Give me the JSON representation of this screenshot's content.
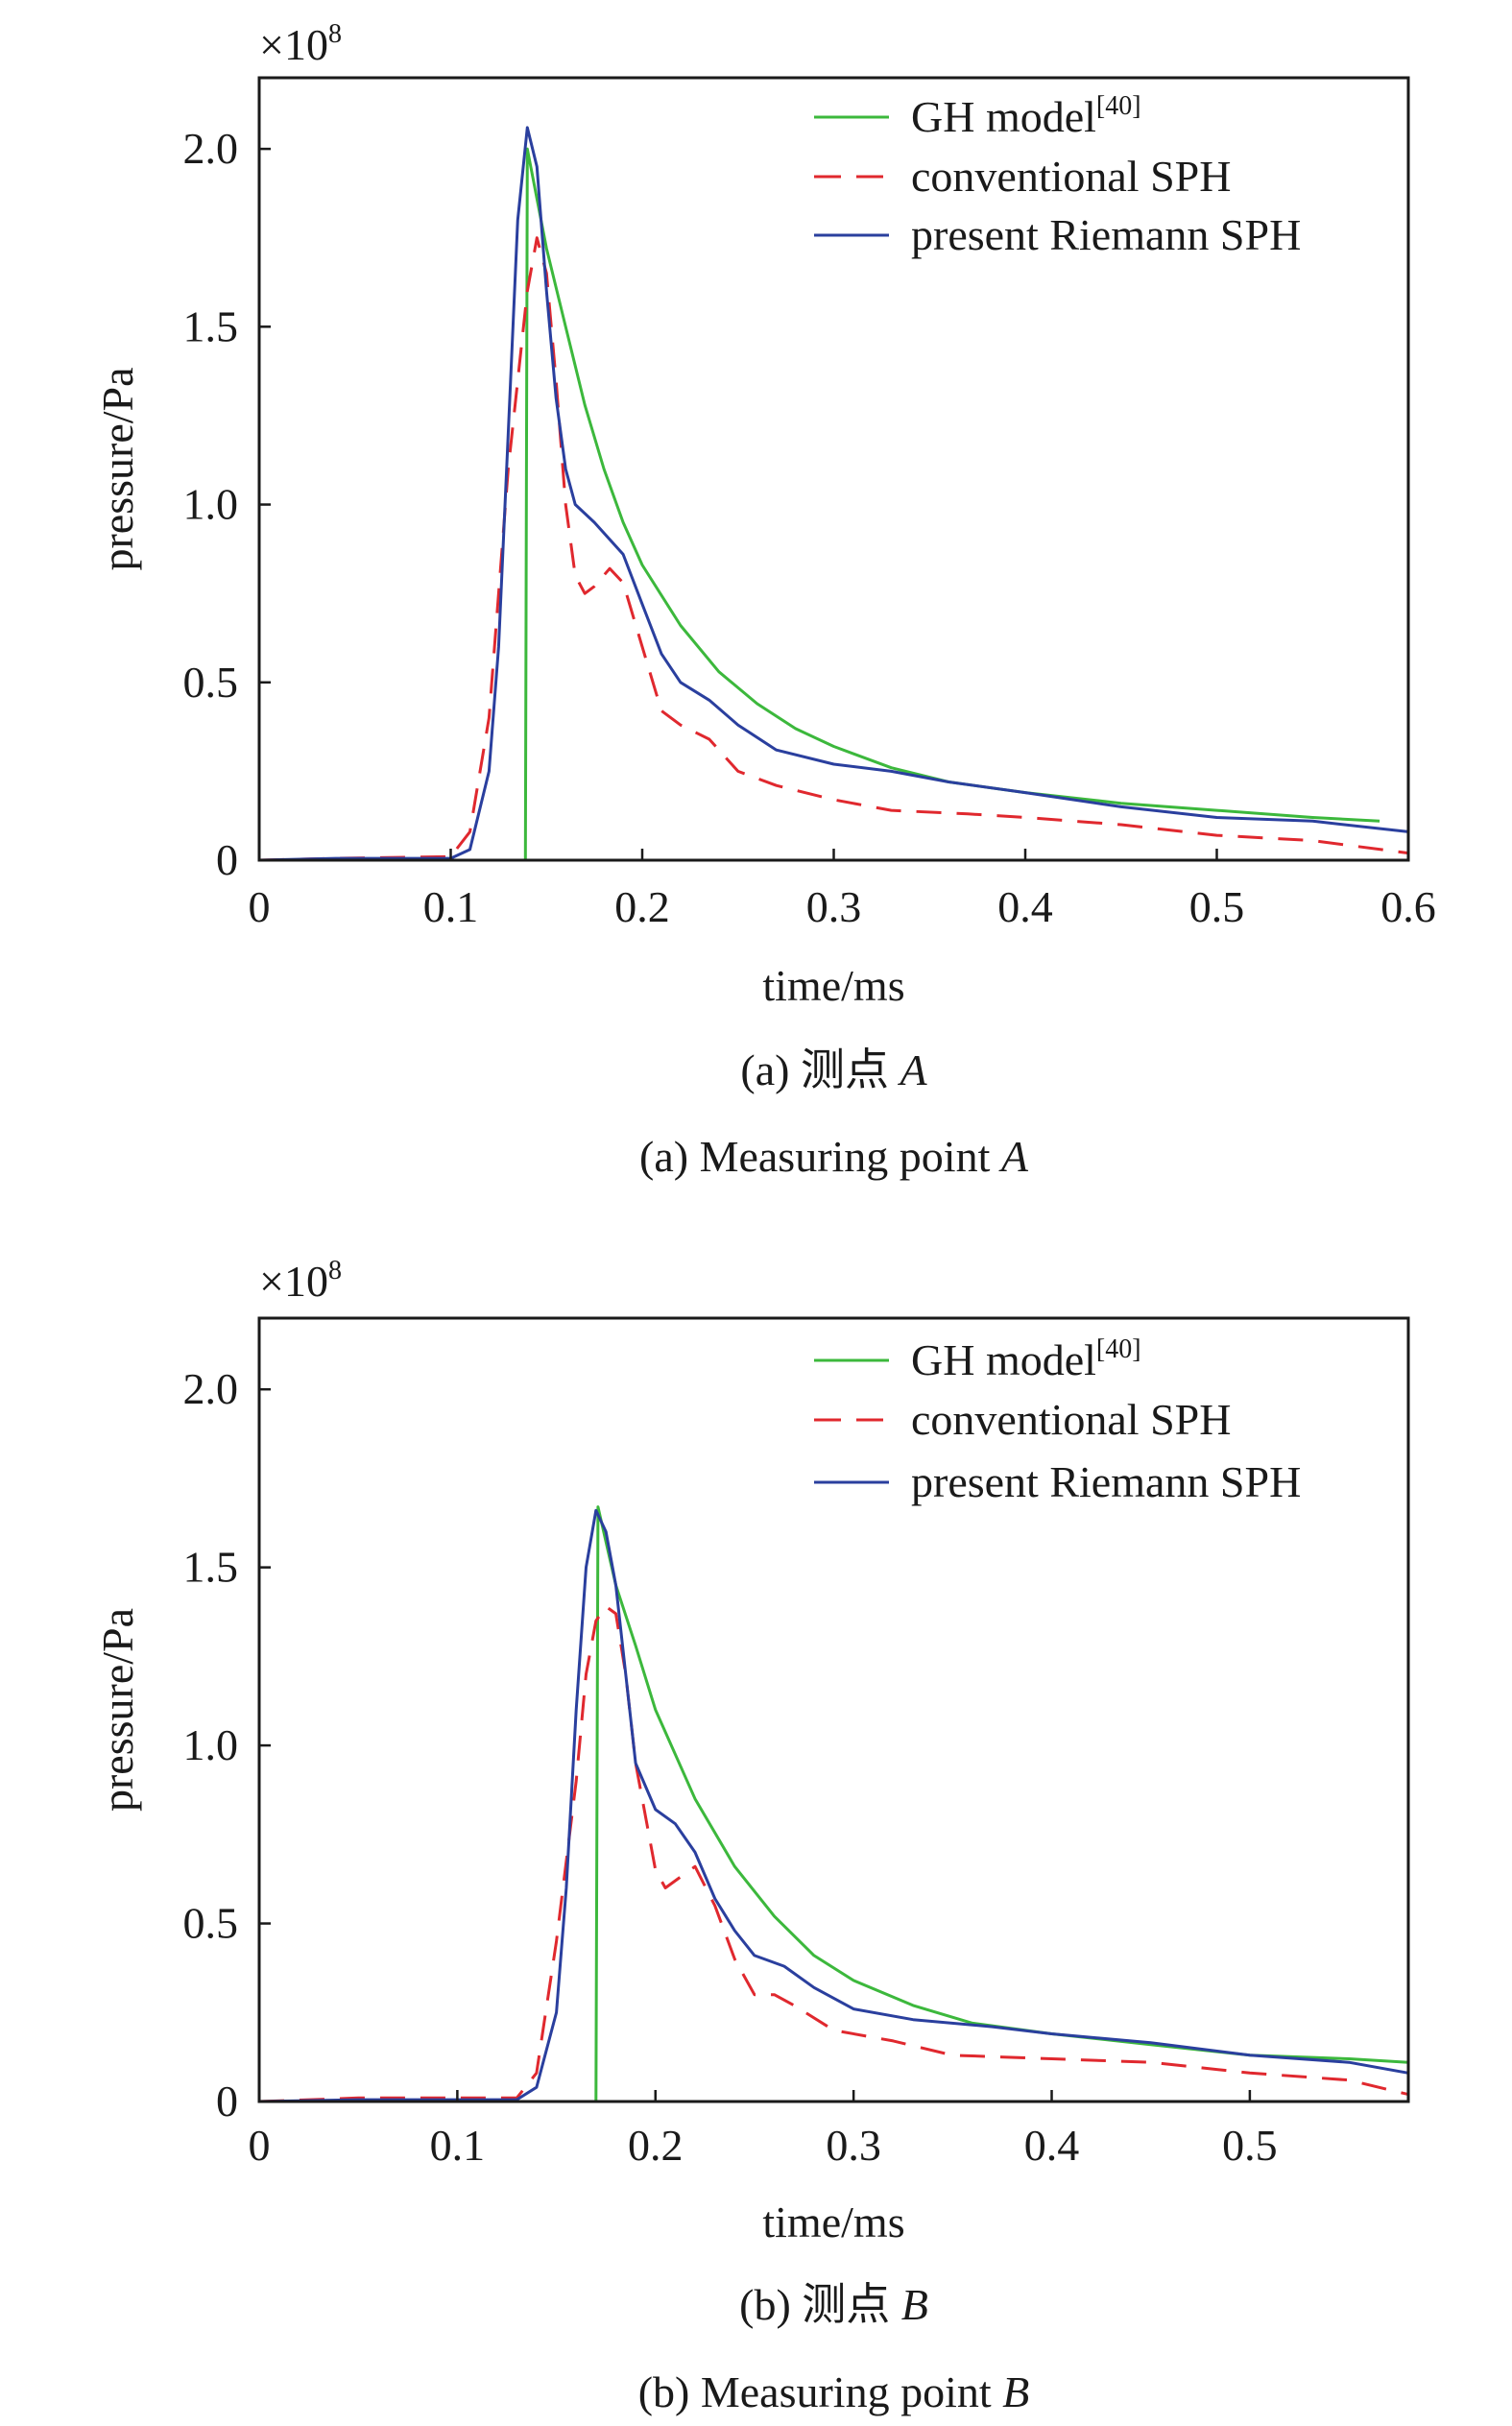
{
  "colors": {
    "gh": "#3cb83c",
    "conv": "#e0282e",
    "riemann": "#2a3f9e",
    "axis": "#1a1a1a"
  },
  "chart_data": [
    {
      "type": "line",
      "multiplier": {
        "base": "×10",
        "exp": "8"
      },
      "xlabel": "time/ms",
      "ylabel": "pressure/Pa",
      "xlim": [
        0,
        0.6
      ],
      "ylim": [
        0,
        2.2
      ],
      "xticks": [
        "0",
        "0.1",
        "0.2",
        "0.3",
        "0.4",
        "0.5",
        "0.6"
      ],
      "xtick_values": [
        0,
        0.1,
        0.2,
        0.3,
        0.4,
        0.5,
        0.6
      ],
      "yticks": [
        "0",
        "0.5",
        "1.0",
        "1.5",
        "2.0"
      ],
      "ytick_values": [
        0,
        0.5,
        1.0,
        1.5,
        2.0
      ],
      "grid": false,
      "legend_position": "top-right",
      "caption_cn": {
        "prefix": "(a) 测点 ",
        "point": "A"
      },
      "caption_en": {
        "prefix": "(a) Measuring point ",
        "point": "A"
      },
      "series": [
        {
          "name": "GH model",
          "ref": "[40]",
          "style": "solid",
          "color_key": "gh",
          "points": [
            [
              0,
              0
            ],
            [
              0.139,
              0
            ],
            [
              0.14,
              2.0
            ],
            [
              0.15,
              1.72
            ],
            [
              0.16,
              1.5
            ],
            [
              0.17,
              1.28
            ],
            [
              0.18,
              1.1
            ],
            [
              0.19,
              0.95
            ],
            [
              0.2,
              0.83
            ],
            [
              0.22,
              0.66
            ],
            [
              0.24,
              0.53
            ],
            [
              0.26,
              0.44
            ],
            [
              0.28,
              0.37
            ],
            [
              0.3,
              0.32
            ],
            [
              0.33,
              0.26
            ],
            [
              0.36,
              0.22
            ],
            [
              0.4,
              0.19
            ],
            [
              0.45,
              0.16
            ],
            [
              0.5,
              0.14
            ],
            [
              0.55,
              0.12
            ],
            [
              0.585,
              0.11
            ]
          ]
        },
        {
          "name": "conventional SPH",
          "ref": "",
          "style": "dashed",
          "color_key": "conv",
          "points": [
            [
              0,
              0
            ],
            [
              0.04,
              0.005
            ],
            [
              0.1,
              0.01
            ],
            [
              0.11,
              0.08
            ],
            [
              0.12,
              0.4
            ],
            [
              0.13,
              1.1
            ],
            [
              0.14,
              1.6
            ],
            [
              0.145,
              1.75
            ],
            [
              0.15,
              1.65
            ],
            [
              0.155,
              1.35
            ],
            [
              0.16,
              1.0
            ],
            [
              0.165,
              0.8
            ],
            [
              0.17,
              0.75
            ],
            [
              0.175,
              0.77
            ],
            [
              0.183,
              0.82
            ],
            [
              0.19,
              0.78
            ],
            [
              0.2,
              0.6
            ],
            [
              0.21,
              0.42
            ],
            [
              0.22,
              0.38
            ],
            [
              0.235,
              0.34
            ],
            [
              0.25,
              0.25
            ],
            [
              0.27,
              0.21
            ],
            [
              0.3,
              0.17
            ],
            [
              0.33,
              0.14
            ],
            [
              0.37,
              0.13
            ],
            [
              0.4,
              0.12
            ],
            [
              0.45,
              0.1
            ],
            [
              0.5,
              0.07
            ],
            [
              0.55,
              0.055
            ],
            [
              0.6,
              0.02
            ]
          ]
        },
        {
          "name": "present Riemann SPH",
          "ref": "",
          "style": "solid",
          "color_key": "riemann",
          "points": [
            [
              0,
              0
            ],
            [
              0.04,
              0.005
            ],
            [
              0.1,
              0.005
            ],
            [
              0.11,
              0.03
            ],
            [
              0.12,
              0.25
            ],
            [
              0.125,
              0.6
            ],
            [
              0.13,
              1.2
            ],
            [
              0.135,
              1.8
            ],
            [
              0.14,
              2.06
            ],
            [
              0.145,
              1.95
            ],
            [
              0.15,
              1.6
            ],
            [
              0.155,
              1.3
            ],
            [
              0.16,
              1.1
            ],
            [
              0.165,
              1.0
            ],
            [
              0.175,
              0.95
            ],
            [
              0.19,
              0.86
            ],
            [
              0.2,
              0.72
            ],
            [
              0.21,
              0.58
            ],
            [
              0.22,
              0.5
            ],
            [
              0.235,
              0.45
            ],
            [
              0.25,
              0.38
            ],
            [
              0.27,
              0.31
            ],
            [
              0.3,
              0.27
            ],
            [
              0.33,
              0.25
            ],
            [
              0.36,
              0.22
            ],
            [
              0.4,
              0.19
            ],
            [
              0.45,
              0.15
            ],
            [
              0.5,
              0.12
            ],
            [
              0.55,
              0.11
            ],
            [
              0.6,
              0.08
            ]
          ]
        }
      ]
    },
    {
      "type": "line",
      "multiplier": {
        "base": "×10",
        "exp": "8"
      },
      "xlabel": "time/ms",
      "ylabel": "pressure/Pa",
      "xlim": [
        0,
        0.58
      ],
      "ylim": [
        0,
        2.2
      ],
      "xticks": [
        "0",
        "0.1",
        "0.2",
        "0.3",
        "0.4",
        "0.5"
      ],
      "xtick_values": [
        0,
        0.1,
        0.2,
        0.3,
        0.4,
        0.5
      ],
      "yticks": [
        "0",
        "0.5",
        "1.0",
        "1.5",
        "2.0"
      ],
      "ytick_values": [
        0,
        0.5,
        1.0,
        1.5,
        2.0
      ],
      "grid": false,
      "legend_position": "top-right",
      "caption_cn": {
        "prefix": "(b) 测点 ",
        "point": "B"
      },
      "caption_en": {
        "prefix": "(b) Measuring point ",
        "point": "B"
      },
      "series": [
        {
          "name": "GH model",
          "ref": "[40]",
          "style": "solid",
          "color_key": "gh",
          "points": [
            [
              0,
              0
            ],
            [
              0.17,
              0
            ],
            [
              0.171,
              1.67
            ],
            [
              0.18,
              1.45
            ],
            [
              0.19,
              1.28
            ],
            [
              0.2,
              1.1
            ],
            [
              0.22,
              0.85
            ],
            [
              0.24,
              0.66
            ],
            [
              0.26,
              0.52
            ],
            [
              0.28,
              0.41
            ],
            [
              0.3,
              0.34
            ],
            [
              0.33,
              0.27
            ],
            [
              0.36,
              0.22
            ],
            [
              0.4,
              0.19
            ],
            [
              0.45,
              0.16
            ],
            [
              0.5,
              0.13
            ],
            [
              0.55,
              0.12
            ],
            [
              0.58,
              0.11
            ]
          ]
        },
        {
          "name": "conventional SPH",
          "ref": "",
          "style": "dashed",
          "color_key": "conv",
          "points": [
            [
              0,
              0
            ],
            [
              0.05,
              0.01
            ],
            [
              0.13,
              0.01
            ],
            [
              0.14,
              0.08
            ],
            [
              0.15,
              0.45
            ],
            [
              0.16,
              0.9
            ],
            [
              0.165,
              1.2
            ],
            [
              0.17,
              1.35
            ],
            [
              0.175,
              1.39
            ],
            [
              0.18,
              1.37
            ],
            [
              0.185,
              1.2
            ],
            [
              0.19,
              0.95
            ],
            [
              0.2,
              0.65
            ],
            [
              0.205,
              0.6
            ],
            [
              0.215,
              0.64
            ],
            [
              0.22,
              0.66
            ],
            [
              0.23,
              0.55
            ],
            [
              0.24,
              0.4
            ],
            [
              0.25,
              0.3
            ],
            [
              0.26,
              0.3
            ],
            [
              0.27,
              0.27
            ],
            [
              0.29,
              0.2
            ],
            [
              0.32,
              0.17
            ],
            [
              0.35,
              0.13
            ],
            [
              0.4,
              0.12
            ],
            [
              0.45,
              0.11
            ],
            [
              0.5,
              0.08
            ],
            [
              0.55,
              0.06
            ],
            [
              0.58,
              0.02
            ]
          ]
        },
        {
          "name": "present Riemann SPH",
          "ref": "",
          "style": "solid",
          "color_key": "riemann",
          "points": [
            [
              0,
              0
            ],
            [
              0.05,
              0.005
            ],
            [
              0.13,
              0.005
            ],
            [
              0.14,
              0.04
            ],
            [
              0.15,
              0.25
            ],
            [
              0.155,
              0.6
            ],
            [
              0.16,
              1.1
            ],
            [
              0.165,
              1.5
            ],
            [
              0.17,
              1.66
            ],
            [
              0.175,
              1.6
            ],
            [
              0.18,
              1.45
            ],
            [
              0.185,
              1.2
            ],
            [
              0.19,
              0.95
            ],
            [
              0.2,
              0.82
            ],
            [
              0.21,
              0.78
            ],
            [
              0.22,
              0.7
            ],
            [
              0.23,
              0.57
            ],
            [
              0.24,
              0.48
            ],
            [
              0.25,
              0.41
            ],
            [
              0.265,
              0.38
            ],
            [
              0.28,
              0.32
            ],
            [
              0.3,
              0.26
            ],
            [
              0.33,
              0.23
            ],
            [
              0.37,
              0.21
            ],
            [
              0.4,
              0.19
            ],
            [
              0.45,
              0.165
            ],
            [
              0.5,
              0.13
            ],
            [
              0.55,
              0.11
            ],
            [
              0.58,
              0.08
            ]
          ]
        }
      ]
    }
  ]
}
